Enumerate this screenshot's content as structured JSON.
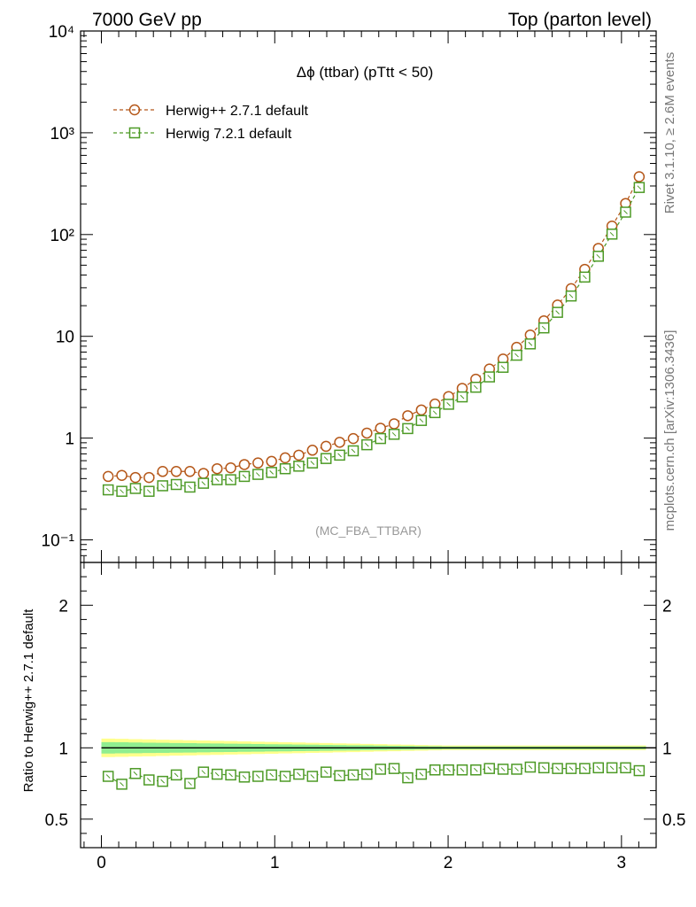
{
  "header": {
    "left": "7000 GeV pp",
    "right": "Top (parton level)"
  },
  "side": {
    "rivet": "Rivet 3.1.10, ≥ 2.6M events",
    "mcplots": "mcplots.cern.ch [arXiv:1306.3436]"
  },
  "chart_data": {
    "type": "line",
    "title": "Δϕ (ttbar) (pTtt < 50)",
    "watermark": "(MC_FBA_TTBAR)",
    "ratio_ylabel": "Ratio to Herwig++ 2.7.1 default",
    "xlim": [
      -0.12,
      3.2
    ],
    "ylim": [
      0.06,
      10000
    ],
    "yscale": "log",
    "ratio_ylim": [
      0.3,
      2.3
    ],
    "main_ticks": [
      "10⁻¹",
      "1",
      "10",
      "10²",
      "10³",
      "10⁴"
    ],
    "ratio_ticks": [
      "0.5",
      "1",
      "2"
    ],
    "x_ticks": [
      "0",
      "1",
      "2",
      "3"
    ],
    "legend_position": "top-left",
    "x": [
      0.0393,
      0.1178,
      0.1963,
      0.2749,
      0.3534,
      0.432,
      0.5105,
      0.589,
      0.6676,
      0.7461,
      0.8247,
      0.9032,
      0.9817,
      1.0603,
      1.1388,
      1.2174,
      1.2959,
      1.3744,
      1.453,
      1.5315,
      1.6101,
      1.6886,
      1.7671,
      1.8457,
      1.9242,
      2.0028,
      2.0813,
      2.1598,
      2.2384,
      2.3169,
      2.3955,
      2.474,
      2.5525,
      2.6311,
      2.7096,
      2.7882,
      2.8667,
      2.9452,
      3.0238,
      3.1023
    ],
    "series": [
      {
        "name": "Herwig++ 2.7.1 default",
        "color": "#b5581a",
        "marker": "circle",
        "values": [
          0.42,
          0.43,
          0.41,
          0.41,
          0.47,
          0.47,
          0.47,
          0.45,
          0.5,
          0.51,
          0.55,
          0.57,
          0.59,
          0.64,
          0.68,
          0.76,
          0.83,
          0.91,
          0.99,
          1.12,
          1.25,
          1.38,
          1.66,
          1.89,
          2.16,
          2.56,
          3.08,
          3.79,
          4.77,
          5.98,
          7.8,
          10.3,
          14.2,
          20.3,
          29.4,
          45.5,
          73.1,
          121,
          202,
          370
        ]
      },
      {
        "name": "Herwig 7.2.1 default",
        "color": "#4d9a26",
        "marker": "square",
        "values": [
          0.31,
          0.3,
          0.32,
          0.3,
          0.34,
          0.35,
          0.33,
          0.36,
          0.39,
          0.39,
          0.42,
          0.44,
          0.46,
          0.5,
          0.53,
          0.57,
          0.63,
          0.68,
          0.75,
          0.86,
          0.99,
          1.09,
          1.24,
          1.49,
          1.78,
          2.15,
          2.54,
          3.16,
          3.99,
          4.96,
          6.52,
          8.42,
          12.1,
          17.2,
          24.9,
          38.2,
          61.2,
          101,
          166,
          290
        ]
      }
    ],
    "ratio": {
      "values": [
        0.8,
        0.745,
        0.82,
        0.775,
        0.765,
        0.81,
        0.75,
        0.83,
        0.815,
        0.81,
        0.795,
        0.8,
        0.81,
        0.8,
        0.815,
        0.8,
        0.83,
        0.805,
        0.81,
        0.815,
        0.85,
        0.855,
        0.79,
        0.815,
        0.845,
        0.845,
        0.845,
        0.845,
        0.855,
        0.85,
        0.85,
        0.865,
        0.86,
        0.855,
        0.855,
        0.855,
        0.86,
        0.86,
        0.86,
        0.84
      ],
      "green_band": [
        0.96,
        1.04
      ],
      "yellow_band": [
        0.935,
        1.065
      ]
    }
  }
}
